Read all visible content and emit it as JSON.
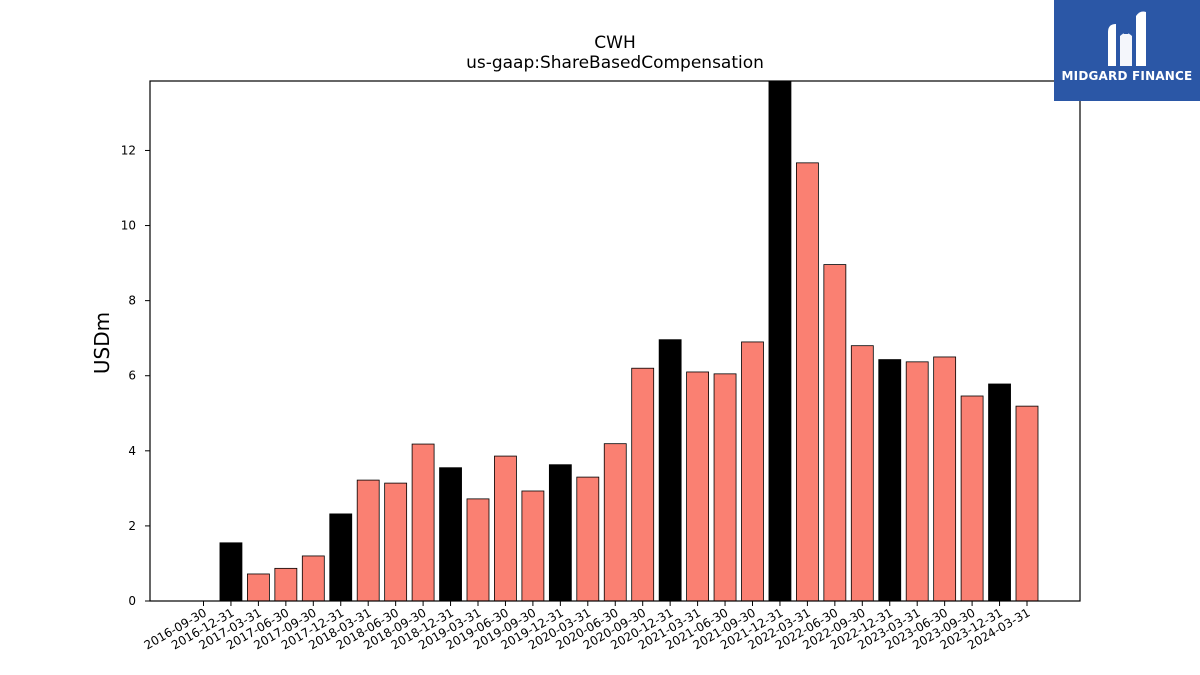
{
  "logo": {
    "text": "MIDGARD FINANCE"
  },
  "chart_data": {
    "type": "bar",
    "title": "CWH",
    "subtitle": "us-gaap:ShareBasedCompensation",
    "xlabel": "",
    "ylabel": "USDm",
    "ylim": [
      0,
      13.85
    ],
    "yticks": [
      0,
      2,
      4,
      6,
      8,
      10,
      12
    ],
    "grid": false,
    "colors": {
      "quarter_end_q4": "#000000",
      "other": "#fa8072",
      "edge": "#000000"
    },
    "categories": [
      "2016-09-30",
      "2016-12-31",
      "2017-03-31",
      "2017-06-30",
      "2017-09-30",
      "2017-12-31",
      "2018-03-31",
      "2018-06-30",
      "2018-09-30",
      "2018-12-31",
      "2019-03-31",
      "2019-06-30",
      "2019-09-30",
      "2019-12-31",
      "2020-03-31",
      "2020-06-30",
      "2020-09-30",
      "2020-12-31",
      "2021-03-31",
      "2021-06-30",
      "2021-09-30",
      "2021-12-31",
      "2022-03-31",
      "2022-06-30",
      "2022-09-30",
      "2022-12-31",
      "2023-03-31",
      "2023-06-30",
      "2023-09-30",
      "2023-12-31",
      "2024-03-31"
    ],
    "values": [
      null,
      1.55,
      0.72,
      0.87,
      1.2,
      2.32,
      3.22,
      3.14,
      4.18,
      3.55,
      2.72,
      3.86,
      2.93,
      3.63,
      3.3,
      4.19,
      6.2,
      6.96,
      6.1,
      6.05,
      6.9,
      13.85,
      11.67,
      8.96,
      6.8,
      6.43,
      6.37,
      6.5,
      5.46,
      5.78,
      5.19
    ]
  }
}
